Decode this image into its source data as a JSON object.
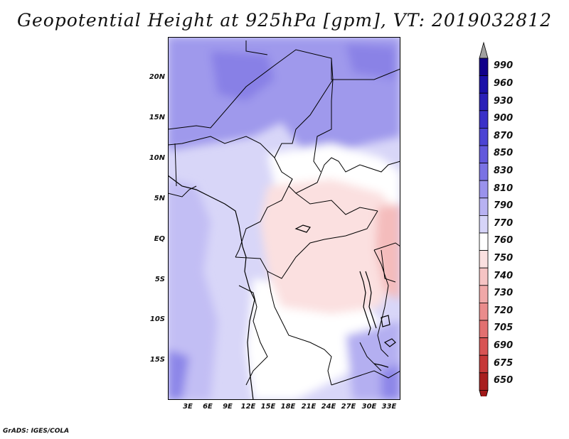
{
  "title": "Geopotential Height at 925hPa [gpm], VT: 2019032812",
  "footer": "GrADS: IGES/COLA",
  "map": {
    "region": "Central Africa",
    "projection": "lat-lon",
    "lat_range": [
      "20S",
      "24N"
    ],
    "lon_range": [
      "0E",
      "35E"
    ],
    "lat_labels": [
      "20N",
      "15N",
      "10N",
      "5N",
      "EQ",
      "5S",
      "10S",
      "15S"
    ],
    "lon_labels": [
      "3E",
      "6E",
      "9E",
      "12E",
      "15E",
      "18E",
      "21E",
      "24E",
      "27E",
      "30E",
      "33E"
    ],
    "field": "geopotential height 925hPa",
    "field_level_summary": {
      "north_sahara": "800-830 gpm (blue)",
      "congo_basin": "740-760 gpm (light red)",
      "southwest_atlantic": "790-810 gpm (blue)",
      "east_africa_highlands": "730-750 gpm (red)"
    }
  },
  "colorbar": {
    "labels": [
      "990",
      "960",
      "930",
      "900",
      "870",
      "850",
      "830",
      "810",
      "790",
      "770",
      "760",
      "750",
      "740",
      "730",
      "720",
      "705",
      "690",
      "675",
      "650"
    ],
    "colors": [
      "#10008a",
      "#1a10a8",
      "#2a20b8",
      "#3a30c8",
      "#4c44d4",
      "#6258dc",
      "#7a72e4",
      "#9a92ec",
      "#b8b2f2",
      "#d6d4f8",
      "#ffffff",
      "#fbe0e0",
      "#f6c4c4",
      "#f0a8a8",
      "#ea8c8c",
      "#e27070",
      "#d85454",
      "#c63838",
      "#a81e1e"
    ],
    "top_arrow_color": "#a0a0a0",
    "bottom_arrow_color": "#a01818"
  }
}
